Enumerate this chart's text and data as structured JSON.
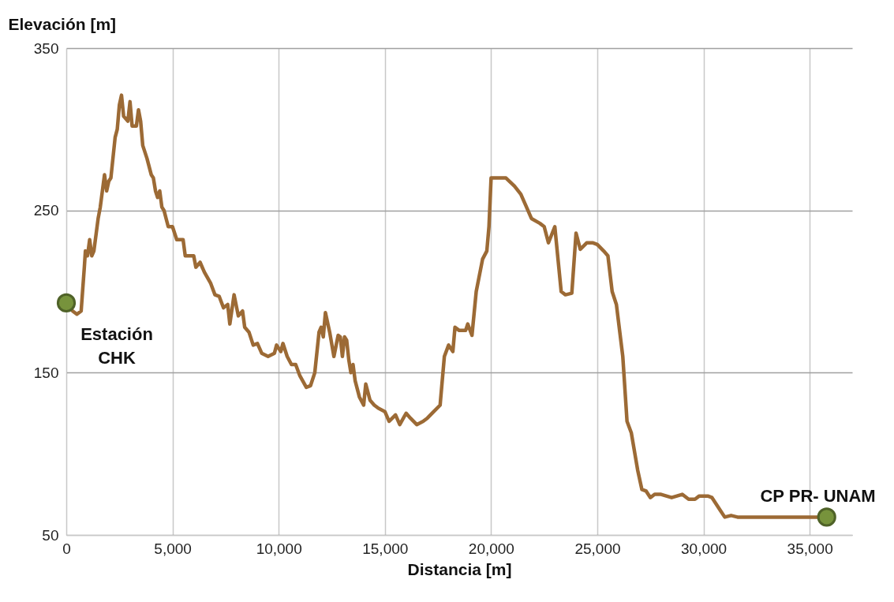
{
  "chart_data": {
    "type": "line",
    "xlabel": "Distancia [m]",
    "ylabel": "Elevación [m]",
    "xlim": [
      0,
      37000
    ],
    "ylim": [
      50,
      350
    ],
    "xticks": [
      0,
      {
        "value": 5000,
        "label": "5,000"
      },
      {
        "value": 10000,
        "label": "10,000"
      },
      {
        "value": 15000,
        "label": "15,000"
      },
      {
        "value": 20000,
        "label": "20,000"
      },
      {
        "value": 25000,
        "label": "25,000"
      },
      {
        "value": 30000,
        "label": "30,000"
      },
      {
        "value": 35000,
        "label": "35,000"
      }
    ],
    "yticks": [
      50,
      150,
      250,
      350
    ],
    "grid": true,
    "line_style": "solid",
    "series": [
      {
        "type": "line",
        "color": "#9c6a35",
        "x": [
          0,
          300,
          500,
          700,
          850,
          900,
          1000,
          1100,
          1200,
          1300,
          1500,
          1600,
          1800,
          1900,
          2000,
          2100,
          2300,
          2400,
          2500,
          2600,
          2700,
          2900,
          3000,
          3100,
          3300,
          3400,
          3500,
          3600,
          3800,
          4000,
          4100,
          4200,
          4300,
          4400,
          4500,
          4600,
          4700,
          4800,
          5000,
          5200,
          5500,
          5600,
          6000,
          6100,
          6300,
          6500,
          6800,
          7000,
          7200,
          7400,
          7600,
          7700,
          7900,
          8100,
          8300,
          8400,
          8600,
          8800,
          9000,
          9200,
          9500,
          9800,
          9900,
          10100,
          10200,
          10400,
          10600,
          10800,
          11000,
          11300,
          11500,
          11700,
          11900,
          12000,
          12100,
          12200,
          12400,
          12600,
          12800,
          12900,
          13000,
          13100,
          13200,
          13300,
          13400,
          13500,
          13600,
          13800,
          14000,
          14100,
          14300,
          14500,
          14700,
          15000,
          15200,
          15500,
          15700,
          16000,
          16200,
          16500,
          16800,
          17000,
          17300,
          17600,
          17800,
          18000,
          18200,
          18300,
          18500,
          18800,
          18900,
          19100,
          19300,
          19600,
          19800,
          19900,
          20000,
          20400,
          20700,
          21100,
          21400,
          21600,
          21900,
          22300,
          22500,
          22700,
          23000,
          23300,
          23500,
          23800,
          24000,
          24200,
          24500,
          24800,
          25000,
          25300,
          25500,
          25700,
          25900,
          26200,
          26400,
          26600,
          26900,
          27100,
          27300,
          27500,
          27700,
          28000,
          28500,
          29000,
          29300,
          29600,
          29800,
          30200,
          30400,
          30800,
          31000,
          31300,
          31600,
          32000,
          33000,
          35800
        ],
        "values": [
          193,
          188,
          186,
          188,
          215,
          225,
          222,
          232,
          222,
          225,
          245,
          252,
          272,
          262,
          268,
          270,
          295,
          300,
          315,
          321,
          308,
          305,
          317,
          302,
          302,
          312,
          305,
          290,
          282,
          272,
          270,
          262,
          258,
          262,
          252,
          250,
          245,
          240,
          240,
          232,
          232,
          222,
          222,
          215,
          218,
          212,
          205,
          198,
          197,
          190,
          192,
          180,
          198,
          185,
          188,
          178,
          175,
          167,
          168,
          162,
          160,
          162,
          167,
          163,
          168,
          160,
          155,
          155,
          148,
          141,
          142,
          150,
          175,
          178,
          172,
          187,
          175,
          160,
          173,
          172,
          160,
          172,
          170,
          158,
          150,
          155,
          145,
          135,
          130,
          143,
          133,
          130,
          128,
          126,
          120,
          124,
          118,
          125,
          122,
          118,
          120,
          122,
          126,
          130,
          160,
          167,
          163,
          178,
          176,
          176,
          180,
          173,
          200,
          220,
          225,
          240,
          270,
          270,
          270,
          265,
          260,
          254,
          245,
          242,
          240,
          230,
          240,
          200,
          198,
          199,
          236,
          226,
          230,
          230,
          229,
          225,
          222,
          200,
          192,
          160,
          120,
          113,
          90,
          78,
          77,
          73,
          75,
          75,
          73,
          75,
          72,
          72,
          74,
          74,
          73,
          65,
          61,
          62,
          61,
          61,
          61,
          61
        ]
      },
      {
        "type": "scatter",
        "color": "#77933c",
        "x": [
          0,
          35800
        ],
        "values": [
          193,
          61
        ]
      }
    ],
    "annotations": [
      {
        "text": "Estación\nCHK",
        "x": 0,
        "y": 193
      },
      {
        "text": "CP PR- UNAM",
        "x": 35800,
        "y": 61
      }
    ]
  }
}
